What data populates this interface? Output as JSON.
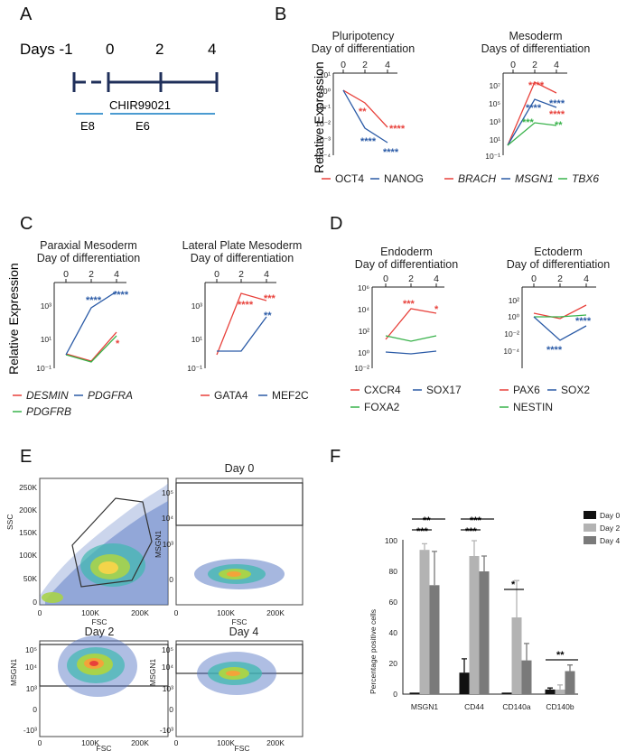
{
  "colors": {
    "red": "#e8413b",
    "blue": "#2a5aa6",
    "green": "#38b24a",
    "black": "#000000",
    "bar_black": "#111111",
    "bar_light": "#b3b3b3",
    "bar_mid": "#7a7a7a",
    "timeline": "#1f2f5a",
    "timeline_light": "#4b9bd1"
  },
  "panel_labels": {
    "a": "A",
    "b": "B",
    "c": "C",
    "d": "D",
    "e": "E",
    "f": "F"
  },
  "timeline": {
    "days_label": "Days -1",
    "day_ticks": [
      "0",
      "2",
      "4"
    ],
    "chir": "CHIR99021",
    "media": [
      "E8",
      "E6"
    ]
  },
  "relative_expression_label": "Relative Expression",
  "x_ticks": [
    "0",
    "2",
    "4"
  ],
  "panels": {
    "b1": {
      "title1": "Pluripotency",
      "title2": "Day of differentiation",
      "y_ticks": [
        "10¹",
        "10⁰",
        "10⁻¹",
        "10⁻²",
        "10⁻³",
        "10⁻⁴"
      ],
      "legend": [
        {
          "label": "OCT4",
          "color": "red",
          "italic": false
        },
        {
          "label": "NANOG",
          "color": "blue",
          "italic": false
        }
      ],
      "stars": [
        {
          "t": "**",
          "c": "red"
        },
        {
          "t": "****",
          "c": "red"
        },
        {
          "t": "****",
          "c": "blue"
        },
        {
          "t": "****",
          "c": "blue"
        }
      ]
    },
    "b2": {
      "title1": "Mesoderm",
      "title2": "Days of differentiation",
      "y_ticks": [
        "10⁷",
        "10⁵",
        "10³",
        "10¹",
        "10⁻¹"
      ],
      "legend": [
        {
          "label": "BRACH",
          "color": "red",
          "italic": true
        },
        {
          "label": "MSGN1",
          "color": "blue",
          "italic": true
        },
        {
          "label": "TBX6",
          "color": "green",
          "italic": true
        }
      ],
      "stars": [
        {
          "t": "****",
          "c": "red"
        },
        {
          "t": "****",
          "c": "blue"
        },
        {
          "t": "****",
          "c": "red"
        },
        {
          "t": "****",
          "c": "blue"
        },
        {
          "t": "***",
          "c": "green"
        },
        {
          "t": "**",
          "c": "green"
        }
      ]
    },
    "c1": {
      "title1": "Paraxial Mesoderm",
      "title2": "Day of differentiation",
      "y_ticks": [
        "10³",
        "10¹",
        "10⁻¹"
      ],
      "legend": [
        {
          "label": "DESMIN",
          "color": "red",
          "italic": true
        },
        {
          "label": "PDGFRA",
          "color": "blue",
          "italic": true
        },
        {
          "label": "PDGFRB",
          "color": "green",
          "italic": true
        }
      ],
      "stars": [
        {
          "t": "****",
          "c": "blue"
        },
        {
          "t": "****",
          "c": "blue"
        },
        {
          "t": "*",
          "c": "red"
        }
      ]
    },
    "c2": {
      "title1": "Lateral Plate Mesoderm",
      "title2": "Day of differentiation",
      "y_ticks": [
        "10³",
        "10¹",
        "10⁻¹"
      ],
      "legend": [
        {
          "label": "GATA4",
          "color": "red",
          "italic": false
        },
        {
          "label": "MEF2C",
          "color": "blue",
          "italic": false
        }
      ],
      "stars": [
        {
          "t": "****",
          "c": "red"
        },
        {
          "t": "***",
          "c": "red"
        },
        {
          "t": "**",
          "c": "blue"
        }
      ]
    },
    "d1": {
      "title1": "Endoderm",
      "title2": "Day of differentiation",
      "y_ticks": [
        "10⁶",
        "10⁴",
        "10²",
        "10⁰",
        "10⁻²"
      ],
      "legend": [
        {
          "label": "CXCR4",
          "color": "red",
          "italic": false
        },
        {
          "label": "SOX17",
          "color": "blue",
          "italic": false
        },
        {
          "label": "FOXA2",
          "color": "green",
          "italic": false
        }
      ],
      "stars": [
        {
          "t": "***",
          "c": "red"
        },
        {
          "t": "*",
          "c": "red"
        }
      ]
    },
    "d2": {
      "title1": "Ectoderm",
      "title2": "Day of differentiation",
      "y_ticks": [
        "10²",
        "10⁰",
        "10⁻²",
        "10⁻⁴"
      ],
      "legend": [
        {
          "label": "PAX6",
          "color": "red",
          "italic": false
        },
        {
          "label": "SOX2",
          "color": "blue",
          "italic": false
        },
        {
          "label": "NESTIN",
          "color": "green",
          "italic": false
        }
      ],
      "stars": [
        {
          "t": "****",
          "c": "blue"
        },
        {
          "t": "****",
          "c": "blue"
        }
      ]
    }
  },
  "flow": {
    "plots": [
      {
        "title": "",
        "ylabel": "SSC",
        "xlabel": "FSC",
        "y_ticks": [
          "250K",
          "200K",
          "150K",
          "100K",
          "50K",
          "0"
        ],
        "x_ticks": [
          "0",
          "100K",
          "200K"
        ]
      },
      {
        "title": "Day 0",
        "ylabel": "MSGN1",
        "xlabel": "FSC",
        "y_ticks": [
          "10⁵",
          "10⁴",
          "10³",
          "0"
        ],
        "x_ticks": [
          "0",
          "100K",
          "200K"
        ]
      },
      {
        "title": "Day 2",
        "ylabel": "MSGN1",
        "xlabel": "FSC",
        "y_ticks": [
          "10⁵",
          "10⁴",
          "10³",
          "0",
          "-10³"
        ],
        "x_ticks": [
          "0",
          "100K",
          "200K"
        ]
      },
      {
        "title": "Day 4",
        "ylabel": "MSGN1",
        "xlabel": "FSC",
        "y_ticks": [
          "10⁵",
          "10⁴",
          "10³",
          "0",
          "-10³"
        ],
        "x_ticks": [
          "0",
          "100K",
          "200K"
        ]
      }
    ]
  },
  "chart_data": {
    "type": "bar",
    "ylabel": "Percentage positive cells",
    "ylim": [
      0,
      100
    ],
    "y_ticks": [
      "100",
      "80",
      "60",
      "40",
      "20",
      "0"
    ],
    "categories": [
      "MSGN1",
      "CD44",
      "CD140a",
      "CD140b"
    ],
    "series": [
      {
        "name": "Day 0",
        "values": [
          1,
          14,
          1,
          3
        ],
        "errors": [
          0,
          9,
          0,
          1
        ]
      },
      {
        "name": "Day 2",
        "values": [
          94,
          90,
          50,
          3
        ],
        "errors": [
          4,
          10,
          24,
          3
        ]
      },
      {
        "name": "Day 4",
        "values": [
          71,
          80,
          22,
          15
        ],
        "errors": [
          22,
          10,
          11,
          4
        ]
      }
    ],
    "significance": [
      "***",
      "**",
      "***",
      "***",
      "*",
      "**"
    ],
    "legend_position": "top-right"
  }
}
